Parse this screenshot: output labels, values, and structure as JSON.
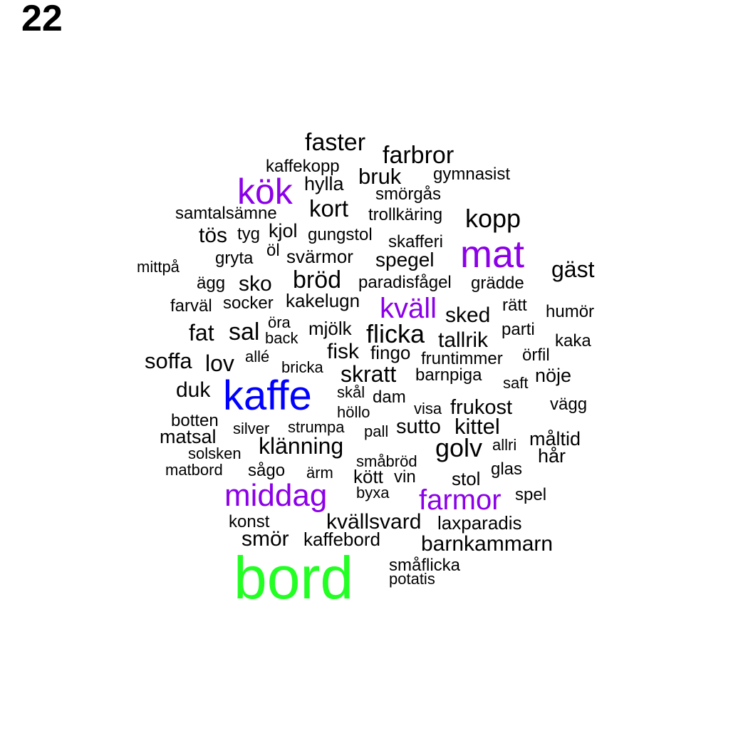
{
  "page_number": "22",
  "colors": {
    "default": "#000000",
    "purple": "#8B00E8",
    "blue": "#0000FF",
    "green": "#22FF22"
  },
  "words": [
    {
      "text": "faster",
      "color": "#000000"
    },
    {
      "text": "farbror",
      "color": "#000000"
    },
    {
      "text": "kaffekopp",
      "color": "#000000"
    },
    {
      "text": "bruk",
      "color": "#000000"
    },
    {
      "text": "gymnasist",
      "color": "#000000"
    },
    {
      "text": "kök",
      "color": "#8B00E8"
    },
    {
      "text": "hylla",
      "color": "#000000"
    },
    {
      "text": "smörgås",
      "color": "#000000"
    },
    {
      "text": "kort",
      "color": "#000000"
    },
    {
      "text": "samtalsämne",
      "color": "#000000"
    },
    {
      "text": "trollkäring",
      "color": "#000000"
    },
    {
      "text": "kopp",
      "color": "#000000"
    },
    {
      "text": "kjol",
      "color": "#000000"
    },
    {
      "text": "tös",
      "color": "#000000"
    },
    {
      "text": "tyg",
      "color": "#000000"
    },
    {
      "text": "gungstol",
      "color": "#000000"
    },
    {
      "text": "skafferi",
      "color": "#000000"
    },
    {
      "text": "mat",
      "color": "#8B00E8"
    },
    {
      "text": "öl",
      "color": "#000000"
    },
    {
      "text": "gryta",
      "color": "#000000"
    },
    {
      "text": "svärmor",
      "color": "#000000"
    },
    {
      "text": "spegel",
      "color": "#000000"
    },
    {
      "text": "mittpå",
      "color": "#000000"
    },
    {
      "text": "gäst",
      "color": "#000000"
    },
    {
      "text": "bröd",
      "color": "#000000"
    },
    {
      "text": "ägg",
      "color": "#000000"
    },
    {
      "text": "sko",
      "color": "#000000"
    },
    {
      "text": "paradisfågel",
      "color": "#000000"
    },
    {
      "text": "grädde",
      "color": "#000000"
    },
    {
      "text": "kakelugn",
      "color": "#000000"
    },
    {
      "text": "farväl",
      "color": "#000000"
    },
    {
      "text": "socker",
      "color": "#000000"
    },
    {
      "text": "kväll",
      "color": "#8B00E8"
    },
    {
      "text": "rätt",
      "color": "#000000"
    },
    {
      "text": "sked",
      "color": "#000000"
    },
    {
      "text": "humör",
      "color": "#000000"
    },
    {
      "text": "öra",
      "color": "#000000"
    },
    {
      "text": "mjölk",
      "color": "#000000"
    },
    {
      "text": "fat",
      "color": "#000000"
    },
    {
      "text": "sal",
      "color": "#000000"
    },
    {
      "text": "back",
      "color": "#000000"
    },
    {
      "text": "flicka",
      "color": "#000000"
    },
    {
      "text": "parti",
      "color": "#000000"
    },
    {
      "text": "tallrik",
      "color": "#000000"
    },
    {
      "text": "kaka",
      "color": "#000000"
    },
    {
      "text": "fisk",
      "color": "#000000"
    },
    {
      "text": "fingo",
      "color": "#000000"
    },
    {
      "text": "örfil",
      "color": "#000000"
    },
    {
      "text": "soffa",
      "color": "#000000"
    },
    {
      "text": "lov",
      "color": "#000000"
    },
    {
      "text": "allé",
      "color": "#000000"
    },
    {
      "text": "fruntimmer",
      "color": "#000000"
    },
    {
      "text": "bricka",
      "color": "#000000"
    },
    {
      "text": "skratt",
      "color": "#000000"
    },
    {
      "text": "barnpiga",
      "color": "#000000"
    },
    {
      "text": "nöje",
      "color": "#000000"
    },
    {
      "text": "saft",
      "color": "#000000"
    },
    {
      "text": "duk",
      "color": "#000000"
    },
    {
      "text": "kaffe",
      "color": "#0000FF"
    },
    {
      "text": "skål",
      "color": "#000000"
    },
    {
      "text": "dam",
      "color": "#000000"
    },
    {
      "text": "höllo",
      "color": "#000000"
    },
    {
      "text": "visa",
      "color": "#000000"
    },
    {
      "text": "frukost",
      "color": "#000000"
    },
    {
      "text": "vägg",
      "color": "#000000"
    },
    {
      "text": "botten",
      "color": "#000000"
    },
    {
      "text": "silver",
      "color": "#000000"
    },
    {
      "text": "strumpa",
      "color": "#000000"
    },
    {
      "text": "pall",
      "color": "#000000"
    },
    {
      "text": "sutto",
      "color": "#000000"
    },
    {
      "text": "kittel",
      "color": "#000000"
    },
    {
      "text": "matsal",
      "color": "#000000"
    },
    {
      "text": "måltid",
      "color": "#000000"
    },
    {
      "text": "klänning",
      "color": "#000000"
    },
    {
      "text": "golv",
      "color": "#000000"
    },
    {
      "text": "allri",
      "color": "#000000"
    },
    {
      "text": "solsken",
      "color": "#000000"
    },
    {
      "text": "hår",
      "color": "#000000"
    },
    {
      "text": "småbröd",
      "color": "#000000"
    },
    {
      "text": "matbord",
      "color": "#000000"
    },
    {
      "text": "sågo",
      "color": "#000000"
    },
    {
      "text": "glas",
      "color": "#000000"
    },
    {
      "text": "ärm",
      "color": "#000000"
    },
    {
      "text": "kött",
      "color": "#000000"
    },
    {
      "text": "vin",
      "color": "#000000"
    },
    {
      "text": "stol",
      "color": "#000000"
    },
    {
      "text": "middag",
      "color": "#8B00E8"
    },
    {
      "text": "byxa",
      "color": "#000000"
    },
    {
      "text": "farmor",
      "color": "#8B00E8"
    },
    {
      "text": "spel",
      "color": "#000000"
    },
    {
      "text": "konst",
      "color": "#000000"
    },
    {
      "text": "kvällsvard",
      "color": "#000000"
    },
    {
      "text": "laxparadis",
      "color": "#000000"
    },
    {
      "text": "smör",
      "color": "#000000"
    },
    {
      "text": "kaffebord",
      "color": "#000000"
    },
    {
      "text": "barnkammarn",
      "color": "#000000"
    },
    {
      "text": "bord",
      "color": "#22FF22"
    },
    {
      "text": "småflicka",
      "color": "#000000"
    },
    {
      "text": "potatis",
      "color": "#000000"
    }
  ]
}
